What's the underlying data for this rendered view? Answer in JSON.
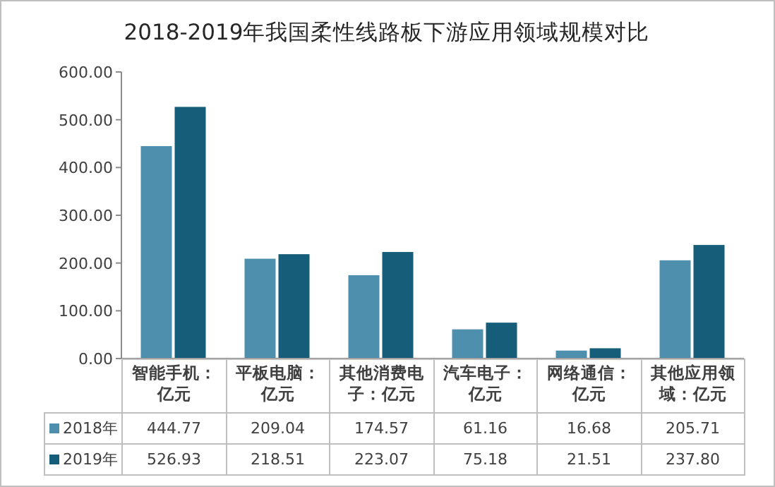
{
  "chart_data": {
    "type": "bar",
    "title": "2018-2019年我国柔性线路板下游应用领域规模对比",
    "categories": [
      "智能手机：亿元",
      "平板电脑：亿元",
      "其他消费电子：亿元",
      "汽车电子：亿元",
      "网络通信：亿元",
      "其他应用领域：亿元"
    ],
    "series": [
      {
        "name": "2018年",
        "color": "#4f8fae",
        "values": [
          444.77,
          209.04,
          174.57,
          61.16,
          16.68,
          205.71
        ],
        "value_labels": [
          "444.77",
          "209.04",
          "174.57",
          "61.16",
          "16.68",
          "205.71"
        ]
      },
      {
        "name": "2019年",
        "color": "#155d78",
        "values": [
          526.93,
          218.51,
          223.07,
          75.18,
          21.51,
          237.8
        ],
        "value_labels": [
          "526.93",
          "218.51",
          "223.07",
          "75.18",
          "21.51",
          "237.80"
        ]
      }
    ],
    "ylim": [
      0,
      600
    ],
    "yticks": [
      {
        "value": 0,
        "label": "0.00"
      },
      {
        "value": 100,
        "label": "100.00"
      },
      {
        "value": 200,
        "label": "200.00"
      },
      {
        "value": 300,
        "label": "300.00"
      },
      {
        "value": 400,
        "label": "400.00"
      },
      {
        "value": 500,
        "label": "500.00"
      },
      {
        "value": 600,
        "label": "600.00"
      }
    ],
    "legend": "bottom"
  }
}
